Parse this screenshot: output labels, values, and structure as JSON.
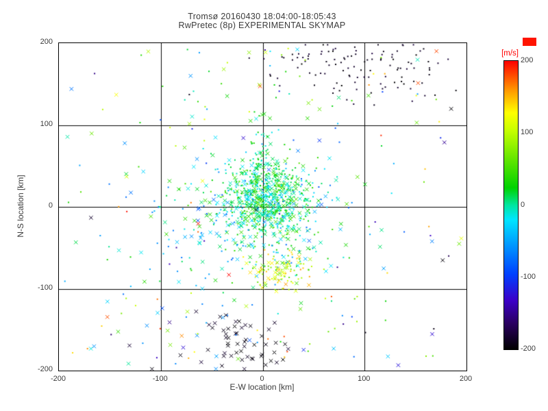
{
  "colors": {
    "accent_red": "#ff0000",
    "axis_black": "#000000",
    "text": "#3a3a3a"
  },
  "chart_data": {
    "type": "scatter",
    "title": "Tromsø 20160430 18:04:00-18:05:43",
    "subtitle": "RwPretec (8p) EXPERIMENTAL SKYMAP",
    "xlabel": "E-W location [km]",
    "ylabel": "N-S location [km]",
    "xlim": [
      -200,
      200
    ],
    "ylim": [
      -200,
      200
    ],
    "xticks": [
      -200,
      -100,
      0,
      100,
      200
    ],
    "yticks": [
      -200,
      -100,
      0,
      100,
      200
    ],
    "gridlines": [
      -100,
      0,
      100
    ],
    "grid": true,
    "legend_position": "right-colorbar",
    "seed": 20160430,
    "colorbar": {
      "unit": "[m/s]",
      "unit_color": "#ff0000",
      "ticks": [
        200,
        100,
        0,
        -100,
        -200
      ],
      "vmin": -200,
      "vmax": 200,
      "stops": [
        {
          "t": 0.0,
          "c": "#000000"
        },
        {
          "t": 0.09,
          "c": "#2a0060"
        },
        {
          "t": 0.17,
          "c": "#3c00c8"
        },
        {
          "t": 0.26,
          "c": "#0040ff"
        },
        {
          "t": 0.36,
          "c": "#0096ff"
        },
        {
          "t": 0.45,
          "c": "#00e6ff"
        },
        {
          "t": 0.5,
          "c": "#00e6a0"
        },
        {
          "t": 0.56,
          "c": "#00d200"
        },
        {
          "t": 0.66,
          "c": "#64e600"
        },
        {
          "t": 0.76,
          "c": "#c8ff00"
        },
        {
          "t": 0.82,
          "c": "#ffff00"
        },
        {
          "t": 0.9,
          "c": "#ff9600"
        },
        {
          "t": 1.0,
          "c": "#ff0000"
        }
      ]
    },
    "clusters": [
      {
        "name": "core-dense",
        "dist": "gauss",
        "cx": 5,
        "cy": 8,
        "sx": 22,
        "sy": 24,
        "count": 650,
        "v": [
          -30,
          60
        ],
        "marker": "mix"
      },
      {
        "name": "core-halo",
        "dist": "gauss",
        "cx": -15,
        "cy": -15,
        "sx": 55,
        "sy": 45,
        "count": 320,
        "v": [
          -90,
          60
        ],
        "marker": "mix"
      },
      {
        "name": "north-plume",
        "dist": "gauss",
        "cx": 0,
        "cy": 60,
        "sx": 8,
        "sy": 30,
        "count": 60,
        "v": [
          -20,
          40
        ],
        "marker": "mix"
      },
      {
        "name": "south-yellow-patch",
        "dist": "gauss",
        "cx": 15,
        "cy": -80,
        "sx": 16,
        "sy": 11,
        "count": 95,
        "v": [
          60,
          160
        ],
        "marker": "mix"
      },
      {
        "name": "northeast-black-cluster",
        "dist": "gauss",
        "cx": 105,
        "cy": 168,
        "sx": 42,
        "sy": 18,
        "count": 90,
        "v": [
          -200,
          -178
        ],
        "marker": "dot"
      },
      {
        "name": "north-black-strip",
        "dist": "gauss",
        "cx": 45,
        "cy": 186,
        "sx": 25,
        "sy": 9,
        "count": 25,
        "v": [
          -200,
          -175
        ],
        "marker": "dot"
      },
      {
        "name": "south-black-x-cluster",
        "dist": "gauss",
        "cx": -15,
        "cy": -165,
        "sx": 26,
        "sy": 18,
        "count": 55,
        "v": [
          -200,
          -180
        ],
        "marker": "x"
      },
      {
        "name": "south-sparse",
        "dist": "uniform",
        "xr": [
          -150,
          100
        ],
        "yr": [
          -200,
          -105
        ],
        "count": 40,
        "v": [
          -200,
          200
        ],
        "marker": "mix"
      },
      {
        "name": "field-sparse",
        "dist": "uniform",
        "xr": [
          -195,
          195
        ],
        "yr": [
          -195,
          195
        ],
        "count": 130,
        "v": [
          -200,
          200
        ],
        "marker": "mix"
      },
      {
        "name": "north-sparse",
        "dist": "uniform",
        "xr": [
          -80,
          60
        ],
        "yr": [
          100,
          195
        ],
        "count": 30,
        "v": [
          -60,
          120
        ],
        "marker": "mix"
      }
    ]
  }
}
